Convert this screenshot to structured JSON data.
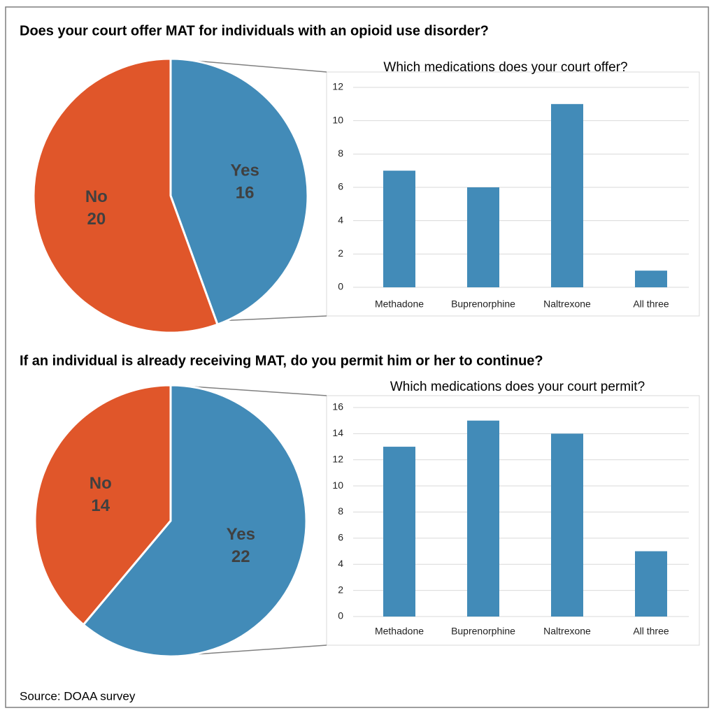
{
  "chart_data": [
    {
      "type": "pie",
      "title": "Does your court offer MAT for individuals with an opioid use disorder?",
      "categories": [
        "Yes",
        "No"
      ],
      "values": [
        16,
        20
      ],
      "colors": [
        "#428bb8",
        "#e0562a"
      ]
    },
    {
      "type": "bar",
      "title": "Which medications does your court offer?",
      "categories": [
        "Methadone",
        "Buprenorphine",
        "Naltrexone",
        "All three"
      ],
      "values": [
        7,
        6,
        11,
        1
      ],
      "color": "#428bb8",
      "ylim": [
        0,
        12
      ],
      "yticks": [
        0,
        2,
        4,
        6,
        8,
        10,
        12
      ],
      "grid": true
    },
    {
      "type": "pie",
      "title": "If an individual is already receiving MAT, do you permit him or her to continue?",
      "categories": [
        "Yes",
        "No"
      ],
      "values": [
        22,
        14
      ],
      "colors": [
        "#428bb8",
        "#e0562a"
      ]
    },
    {
      "type": "bar",
      "title": "Which medications does your court permit?",
      "categories": [
        "Methadone",
        "Buprenorphine",
        "Naltrexone",
        "All three"
      ],
      "values": [
        13,
        15,
        14,
        5
      ],
      "color": "#428bb8",
      "ylim": [
        0,
        16
      ],
      "yticks": [
        0,
        2,
        4,
        6,
        8,
        10,
        12,
        14,
        16
      ],
      "grid": true
    }
  ],
  "source": "Source: DOAA survey"
}
